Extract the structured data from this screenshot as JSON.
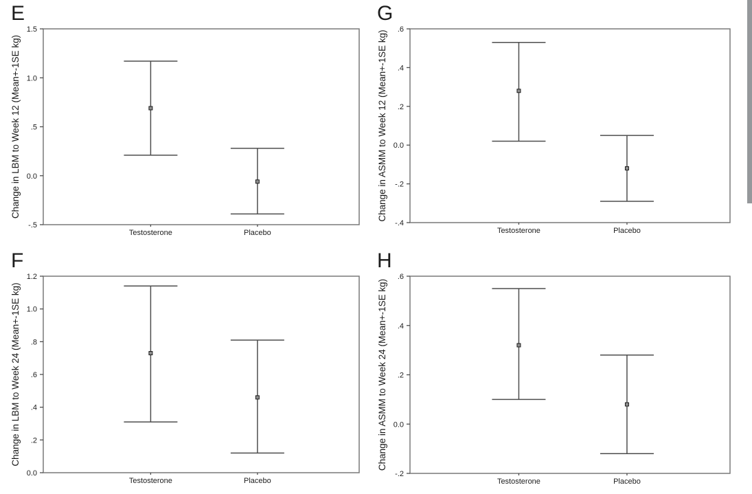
{
  "page": {
    "background": "#ffffff",
    "text_color": "#1c1c1c",
    "line_color": "#4d4d4d",
    "box_color": "#787878",
    "marker_fill": "#8f8f8f",
    "edge_strip_color": "#95989b"
  },
  "chart_data": [
    {
      "panel_label": "E",
      "type": "errorbar",
      "ylabel": "Change in LBM to Week 12 (Mean+-1SE kg)",
      "categories": [
        "Testosterone",
        "Placebo"
      ],
      "ylim": [
        -0.5,
        1.5
      ],
      "grid": false,
      "yticks": [
        {
          "value": 1.5,
          "label": "1.5"
        },
        {
          "value": 1.0,
          "label": "1.0"
        },
        {
          "value": 0.5,
          "label": ".5"
        },
        {
          "value": 0.0,
          "label": "0.0"
        },
        {
          "value": -0.5,
          "label": "-.5"
        }
      ],
      "series": [
        {
          "category": "Testosterone",
          "mean": 0.69,
          "upper": 1.17,
          "lower": 0.21
        },
        {
          "category": "Placebo",
          "mean": -0.06,
          "upper": 0.28,
          "lower": -0.39
        }
      ]
    },
    {
      "panel_label": "G",
      "type": "errorbar",
      "ylabel": "Change in ASMM to Week 12 (Mean+-1SE kg)",
      "categories": [
        "Testosterone",
        "Placebo"
      ],
      "ylim": [
        -0.4,
        0.6
      ],
      "grid": false,
      "yticks": [
        {
          "value": 0.6,
          "label": ".6"
        },
        {
          "value": 0.4,
          "label": ".4"
        },
        {
          "value": 0.2,
          "label": ".2"
        },
        {
          "value": 0.0,
          "label": "0.0"
        },
        {
          "value": -0.2,
          "label": "-.2"
        },
        {
          "value": -0.4,
          "label": "-.4"
        }
      ],
      "series": [
        {
          "category": "Testosterone",
          "mean": 0.28,
          "upper": 0.53,
          "lower": 0.02
        },
        {
          "category": "Placebo",
          "mean": -0.12,
          "upper": 0.05,
          "lower": -0.29
        }
      ]
    },
    {
      "panel_label": "F",
      "type": "errorbar",
      "ylabel": "Change in LBM to Week 24 (Mean+-1SE kg)",
      "categories": [
        "Testosterone",
        "Placebo"
      ],
      "ylim": [
        0.0,
        1.2
      ],
      "grid": false,
      "yticks": [
        {
          "value": 1.2,
          "label": "1.2"
        },
        {
          "value": 1.0,
          "label": "1.0"
        },
        {
          "value": 0.8,
          "label": ".8"
        },
        {
          "value": 0.6,
          "label": ".6"
        },
        {
          "value": 0.4,
          "label": ".4"
        },
        {
          "value": 0.2,
          "label": ".2"
        },
        {
          "value": 0.0,
          "label": "0.0"
        }
      ],
      "series": [
        {
          "category": "Testosterone",
          "mean": 0.73,
          "upper": 1.14,
          "lower": 0.31
        },
        {
          "category": "Placebo",
          "mean": 0.46,
          "upper": 0.81,
          "lower": 0.12
        }
      ]
    },
    {
      "panel_label": "H",
      "type": "errorbar",
      "ylabel": "Change in ASMM to Week 24 (Mean+-1SE kg)",
      "categories": [
        "Testosterone",
        "Placebo"
      ],
      "ylim": [
        -0.2,
        0.6
      ],
      "grid": false,
      "yticks": [
        {
          "value": 0.6,
          "label": ".6"
        },
        {
          "value": 0.4,
          "label": ".4"
        },
        {
          "value": 0.2,
          "label": ".2"
        },
        {
          "value": 0.0,
          "label": "0.0"
        },
        {
          "value": -0.2,
          "label": "-.2"
        }
      ],
      "series": [
        {
          "category": "Testosterone",
          "mean": 0.32,
          "upper": 0.55,
          "lower": 0.1
        },
        {
          "category": "Placebo",
          "mean": 0.08,
          "upper": 0.28,
          "lower": -0.12
        }
      ]
    }
  ]
}
